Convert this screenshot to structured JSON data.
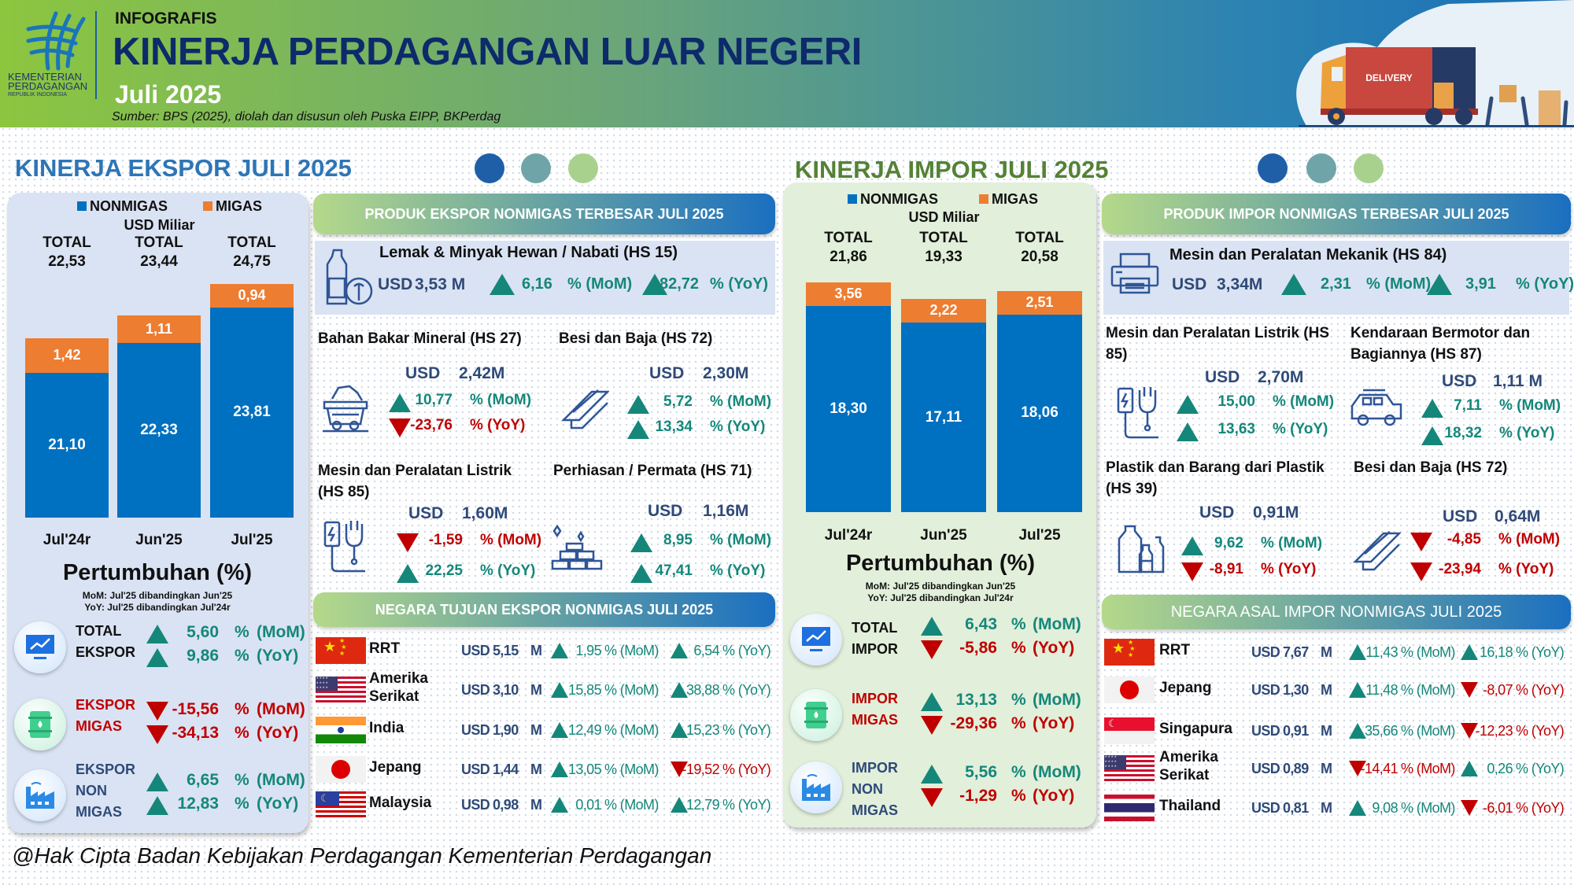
{
  "header": {
    "tag": "INFOGRAFIS",
    "title": "KINERJA PERDAGANGAN LUAR NEGERI",
    "period": "Juli 2025",
    "source": "Sumber: BPS (2025), diolah dan disusun oleh Puska EIPP, BKPerdag",
    "logo": {
      "line1": "KEMENTERIAN",
      "line2": "PERDAGANGAN",
      "line3": "REPUBLIK INDONESIA"
    },
    "illustration_label": "DELIVERY"
  },
  "colors": {
    "up": "#15877a",
    "down": "#c00000",
    "nonmigas": "#0070c0",
    "migas": "#ed7d31",
    "export_title": "#2e75b6",
    "import_title": "#548235",
    "dot1": "#1f5fa8",
    "dot2": "#6fa5a8",
    "dot3": "#a9d18e"
  },
  "labels": {
    "pct": "%",
    "mom": "(MoM)",
    "yoy": "(YoY)",
    "pct_mom": "% (MoM)",
    "pct_yoy": "% (YoY)",
    "usd": "USD",
    "unit_m": "M"
  },
  "export": {
    "title": "KINERJA EKSPOR JULI 2025",
    "growth": {
      "title": "Pertumbuhan (%)",
      "note_mom": "MoM:  Jul'25 dibandingkan Jun'25",
      "note_yoy": "YoY: Jul'25 dibandingkan Jul'24r",
      "rows": [
        {
          "lines": [
            "TOTAL",
            "EKSPOR"
          ],
          "icon": "monitor-chart",
          "label_color": "dark",
          "mom": {
            "value": "5,60",
            "dir": "up"
          },
          "yoy": {
            "value": "9,86",
            "dir": "up"
          }
        },
        {
          "lines": [
            "EKSPOR",
            "MIGAS"
          ],
          "icon": "oil-barrel",
          "label_color": "red",
          "mom": {
            "value": "-15,56",
            "dir": "down"
          },
          "yoy": {
            "value": "-34,13",
            "dir": "down"
          }
        },
        {
          "lines": [
            "EKSPOR",
            "NON",
            "MIGAS"
          ],
          "icon": "factory",
          "label_color": "navy",
          "mom": {
            "value": "6,65",
            "dir": "up"
          },
          "yoy": {
            "value": "12,83",
            "dir": "up"
          }
        }
      ]
    },
    "products": {
      "title": "PRODUK EKSPOR NONMIGAS TERBESAR JULI 2025",
      "featured": {
        "name": "Lemak & Minyak Hewan / Nabati (HS 15)",
        "value": "3,53 M",
        "icon": "oil-bottle",
        "mom": {
          "value": "6,16",
          "dir": "up"
        },
        "yoy": {
          "value": "82,72",
          "dir": "up"
        }
      },
      "items": [
        {
          "name": [
            "Bahan Bakar Mineral (HS 27)"
          ],
          "value": "2,42M",
          "icon": "mine-cart",
          "mom": {
            "value": "10,77",
            "dir": "up"
          },
          "yoy": {
            "value": "-23,76",
            "dir": "down"
          }
        },
        {
          "name": [
            "Besi dan Baja (HS 72)"
          ],
          "value": "2,30M",
          "icon": "steel-beam",
          "mom": {
            "value": "5,72",
            "dir": "up"
          },
          "yoy": {
            "value": "13,34",
            "dir": "up"
          }
        },
        {
          "name": [
            "Mesin dan Peralatan Listrik",
            "(HS 85)"
          ],
          "value": "1,60M",
          "icon": "electric-plug",
          "mom": {
            "value": "-1,59",
            "dir": "down"
          },
          "yoy": {
            "value": "22,25",
            "dir": "up"
          }
        },
        {
          "name": [
            "Perhiasan / Permata (HS 71)"
          ],
          "value": "1,16M",
          "icon": "gold-bars",
          "mom": {
            "value": "8,95",
            "dir": "up"
          },
          "yoy": {
            "value": "47,41",
            "dir": "up"
          }
        }
      ]
    },
    "countries": {
      "title": "NEGARA TUJUAN EKSPOR NONMIGAS JULI 2025",
      "rows": [
        {
          "name": [
            "RRT"
          ],
          "flag": "china",
          "value": "5,15",
          "mom": {
            "value": "1,95",
            "dir": "up"
          },
          "yoy": {
            "value": "6,54",
            "dir": "up"
          }
        },
        {
          "name": [
            "Amerika",
            "Serikat"
          ],
          "flag": "usa",
          "value": "3,10",
          "mom": {
            "value": "15,85",
            "dir": "up"
          },
          "yoy": {
            "value": "38,88",
            "dir": "up"
          }
        },
        {
          "name": [
            "India"
          ],
          "flag": "india",
          "value": "1,90",
          "mom": {
            "value": "12,49",
            "dir": "up"
          },
          "yoy": {
            "value": "15,23",
            "dir": "up"
          }
        },
        {
          "name": [
            "Jepang"
          ],
          "flag": "japan",
          "value": "1,44",
          "mom": {
            "value": "13,05",
            "dir": "up"
          },
          "yoy": {
            "value": "-19,52",
            "dir": "down"
          }
        },
        {
          "name": [
            "Malaysia"
          ],
          "flag": "malaysia",
          "value": "0,98",
          "mom": {
            "value": "0,01",
            "dir": "up"
          },
          "yoy": {
            "value": "12,79",
            "dir": "up"
          }
        }
      ]
    }
  },
  "import": {
    "title": "KINERJA IMPOR JULI 2025",
    "growth": {
      "title": "Pertumbuhan (%)",
      "note_mom": "MoM:  Jul'25 dibandingkan Jun'25",
      "note_yoy": "YoY: Jul'25 dibandingkan Jul'24r",
      "rows": [
        {
          "lines": [
            "TOTAL",
            "IMPOR"
          ],
          "icon": "monitor-chart",
          "label_color": "dark",
          "mom": {
            "value": "6,43",
            "dir": "up"
          },
          "yoy": {
            "value": "-5,86",
            "dir": "down"
          }
        },
        {
          "lines": [
            "IMPOR",
            "MIGAS"
          ],
          "icon": "oil-barrel",
          "label_color": "red",
          "mom": {
            "value": "13,13",
            "dir": "up"
          },
          "yoy": {
            "value": "-29,36",
            "dir": "down"
          }
        },
        {
          "lines": [
            "IMPOR",
            "NON",
            "MIGAS"
          ],
          "icon": "factory",
          "label_color": "navy",
          "mom": {
            "value": "5,56",
            "dir": "up"
          },
          "yoy": {
            "value": "-1,29",
            "dir": "down"
          }
        }
      ]
    },
    "products": {
      "title": "PRODUK IMPOR NONMIGAS TERBESAR JULI 2025",
      "featured": {
        "name": "Mesin dan Peralatan Mekanik (HS 84)",
        "value": "3,34M",
        "icon": "printer",
        "mom": {
          "value": "2,31",
          "dir": "up"
        },
        "yoy": {
          "value": "3,91",
          "dir": "up"
        }
      },
      "items": [
        {
          "name": [
            "Mesin dan Peralatan Listrik (HS",
            "85)"
          ],
          "value": "2,70M",
          "icon": "electric-plug",
          "mom": {
            "value": "15,00",
            "dir": "up"
          },
          "yoy": {
            "value": "13,63",
            "dir": "up"
          }
        },
        {
          "name": [
            "Kendaraan Bermotor dan",
            "Bagiannya (HS 87)"
          ],
          "value": "1,11 M",
          "icon": "car",
          "mom": {
            "value": "7,11",
            "dir": "up"
          },
          "yoy": {
            "value": "18,32",
            "dir": "up"
          }
        },
        {
          "name": [
            "Plastik dan Barang dari Plastik",
            "(HS 39)"
          ],
          "value": "0,91M",
          "icon": "plastic-bottles",
          "mom": {
            "value": "9,62",
            "dir": "up"
          },
          "yoy": {
            "value": "-8,91",
            "dir": "down"
          }
        },
        {
          "name": [
            "Besi dan Baja (HS 72)"
          ],
          "value": "0,64M",
          "icon": "steel-beam",
          "mom": {
            "value": "-4,85",
            "dir": "down"
          },
          "yoy": {
            "value": "-23,94",
            "dir": "down"
          }
        }
      ]
    },
    "countries": {
      "title": "NEGARA ASAL IMPOR NONMIGAS JULI 2025",
      "rows": [
        {
          "name": [
            "RRT"
          ],
          "flag": "china",
          "value": "7,67",
          "mom": {
            "value": "11,43",
            "dir": "up"
          },
          "yoy": {
            "value": "16,18",
            "dir": "up"
          }
        },
        {
          "name": [
            "Jepang"
          ],
          "flag": "japan",
          "value": "1,30",
          "mom": {
            "value": "11,48",
            "dir": "up"
          },
          "yoy": {
            "value": "-8,07",
            "dir": "down"
          }
        },
        {
          "name": [
            "Singapura"
          ],
          "flag": "singapore",
          "value": "0,91",
          "mom": {
            "value": "35,66",
            "dir": "up"
          },
          "yoy": {
            "value": "-12,23",
            "dir": "down"
          }
        },
        {
          "name": [
            "Amerika",
            "Serikat"
          ],
          "flag": "usa",
          "value": "0,89",
          "mom": {
            "value": "-14,41",
            "dir": "down"
          },
          "yoy": {
            "value": "0,26",
            "dir": "up"
          }
        },
        {
          "name": [
            "Thailand"
          ],
          "flag": "thailand",
          "value": "0,81",
          "mom": {
            "value": "9,08",
            "dir": "up"
          },
          "yoy": {
            "value": "-6,01",
            "dir": "down"
          }
        }
      ]
    }
  },
  "chart_data": [
    {
      "type": "bar",
      "stacked": true,
      "title": "KINERJA EKSPOR JULI 2025",
      "ylabel": "USD Miliar",
      "categories": [
        "Jul'24r",
        "Jun'25",
        "Jul'25"
      ],
      "series": [
        {
          "name": "NONMIGAS",
          "values": [
            21.1,
            22.33,
            23.81
          ],
          "labels": [
            "21,10",
            "22,33",
            "23,81"
          ]
        },
        {
          "name": "MIGAS",
          "values": [
            1.42,
            1.11,
            0.94
          ],
          "labels": [
            "1,42",
            "1,11",
            "0,94"
          ]
        }
      ],
      "totals": [
        22.53,
        23.44,
        24.75
      ],
      "total_labels": [
        "22,53",
        "23,44",
        "24,75"
      ],
      "total_prefix": "TOTAL",
      "y_axis_min": 15.16,
      "legend": "top"
    },
    {
      "type": "bar",
      "stacked": true,
      "title": "KINERJA IMPOR JULI 2025",
      "ylabel": "USD Miliar",
      "categories": [
        "Jul'24r",
        "Jun'25",
        "Jul'25"
      ],
      "series": [
        {
          "name": "NONMIGAS",
          "values": [
            18.3,
            17.11,
            18.06
          ],
          "labels": [
            "18,30",
            "17,11",
            "18,06"
          ]
        },
        {
          "name": "MIGAS",
          "values": [
            3.56,
            2.22,
            2.51
          ],
          "labels": [
            "3,56",
            "2,22",
            "2,51"
          ]
        }
      ],
      "totals": [
        21.86,
        19.33,
        20.58
      ],
      "total_labels": [
        "21,86",
        "19,33",
        "20,58"
      ],
      "total_prefix": "TOTAL",
      "y_axis_min": -13.3,
      "legend": "top"
    }
  ],
  "footer": "@Hak Cipta Badan Kebijakan Perdagangan Kementerian Perdagangan"
}
